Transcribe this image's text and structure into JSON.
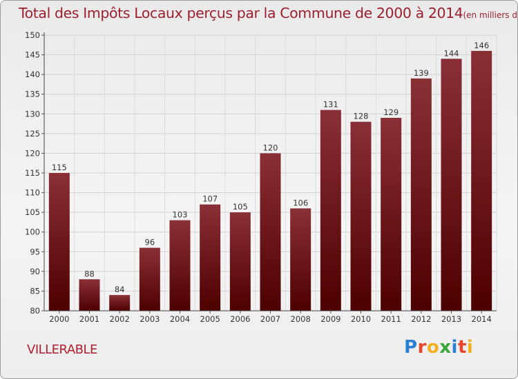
{
  "title": "Total des Impôts Locaux perçus par la Commune de 2000 à 2014",
  "title_unit": "(en milliers d'€)",
  "commune": "VILLERABLE",
  "logo": {
    "letters": [
      "P",
      "r",
      "o",
      "x",
      "i",
      "t",
      "i"
    ],
    "colors": [
      "#2a7fd4",
      "#e8452c",
      "#f2b01e",
      "#3aa63a",
      "#2a7fd4",
      "#e8452c",
      "#f2b01e"
    ]
  },
  "colors": {
    "bar_top": "#8a2f36",
    "bar_bottom": "#4d0000",
    "title": "#9b1f2e"
  },
  "chart_data": {
    "type": "bar",
    "categories": [
      "2000",
      "2001",
      "2002",
      "2003",
      "2004",
      "2005",
      "2006",
      "2007",
      "2008",
      "2009",
      "2010",
      "2011",
      "2012",
      "2013",
      "2014"
    ],
    "values": [
      115,
      88,
      84,
      96,
      103,
      107,
      105,
      120,
      106,
      131,
      128,
      129,
      139,
      144,
      146
    ],
    "ylim": [
      80,
      150
    ],
    "yticks": [
      80,
      85,
      90,
      95,
      100,
      105,
      110,
      115,
      120,
      125,
      130,
      135,
      140,
      145,
      150
    ],
    "grid": true,
    "title": "Total des Impôts Locaux perçus par la Commune de 2000 à 2014",
    "xlabel": "",
    "ylabel": ""
  }
}
